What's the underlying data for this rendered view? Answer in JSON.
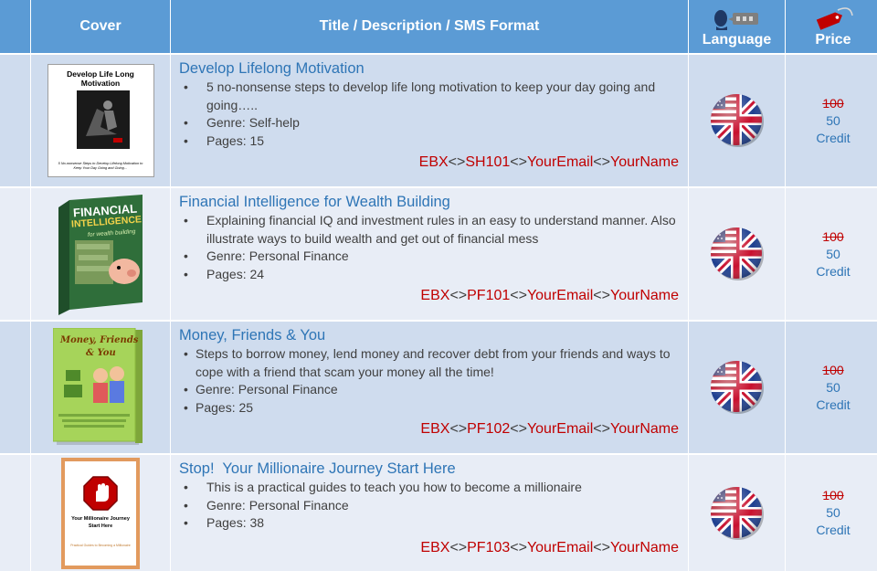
{
  "headers": {
    "cover": "Cover",
    "title": "Title / Description / SMS Format",
    "language": "Language",
    "price": "Price",
    "language_icon": "speaking-person-icon",
    "price_icon": "price-tag-icon"
  },
  "books": [
    {
      "title": "Develop Lifelong Motivation",
      "bullets": [
        "5 no-nonsense steps to develop life long motivation to keep your day going and going…..",
        "Genre: Self-help",
        "Pages: 15"
      ],
      "sms": {
        "prefix": "EBX",
        "code": "SH101",
        "email": "YourEmail",
        "name": "YourName",
        "sep": "<>"
      },
      "cover": {
        "title": "Develop Life Long Motivation",
        "caption": "5 No-nonsense Steps to Develop Lifelong Motivation to Keep Your Day Going and Going…"
      },
      "language_icon": "uk-us-flag-icon",
      "price": {
        "old": "100",
        "new": "50",
        "unit": "Credit"
      }
    },
    {
      "title": "Financial Intelligence for Wealth Building",
      "bullets": [
        "Explaining financial IQ and investment rules in an easy to understand manner. Also illustrate ways to build wealth and get out of financial mess",
        "Genre: Personal Finance",
        "Pages: 24"
      ],
      "sms": {
        "prefix": "EBX",
        "code": "PF101",
        "email": "YourEmail",
        "name": "YourName",
        "sep": "<>"
      },
      "cover": {
        "title1": "FINANCIAL",
        "title2": "INTELLIGENCE",
        "subtitle": "for wealth building"
      },
      "language_icon": "uk-us-flag-icon",
      "price": {
        "old": "100",
        "new": "50",
        "unit": "Credit"
      }
    },
    {
      "title": "Money, Friends & You",
      "bullets": [
        "Steps to borrow money, lend money and recover debt from your friends and ways to cope with a friend that scam your money all the time!",
        "Genre: Personal Finance",
        "Pages: 25"
      ],
      "sms": {
        "prefix": "EBX",
        "code": "PF102",
        "email": "YourEmail",
        "name": "YourName",
        "sep": "<>"
      },
      "cover": {
        "title1": "Money, Friends",
        "title2": "& You"
      },
      "language_icon": "uk-us-flag-icon",
      "price": {
        "old": "100",
        "new": "50",
        "unit": "Credit"
      }
    },
    {
      "title": "Stop!  Your Millionaire Journey Start Here",
      "bullets": [
        "This is a practical guides to teach you how to become a millionaire",
        "Genre: Personal Finance",
        "Pages: 38"
      ],
      "sms": {
        "prefix": "EBX",
        "code": "PF103",
        "email": "YourEmail",
        "name": "YourName",
        "sep": "<>"
      },
      "cover": {
        "title1": "Your Millionaire Journey",
        "title2": "Start Here",
        "caption": "Practical Guides to Becoming a Millionaire"
      },
      "language_icon": "uk-us-flag-icon",
      "price": {
        "old": "100",
        "new": "50",
        "unit": "Credit"
      }
    }
  ],
  "colors": {
    "header_bg": "#5b9bd5",
    "row_dark": "#cfdcee",
    "row_light": "#e8edf6",
    "title_blue": "#2e75b6",
    "sms_red": "#c00000"
  }
}
